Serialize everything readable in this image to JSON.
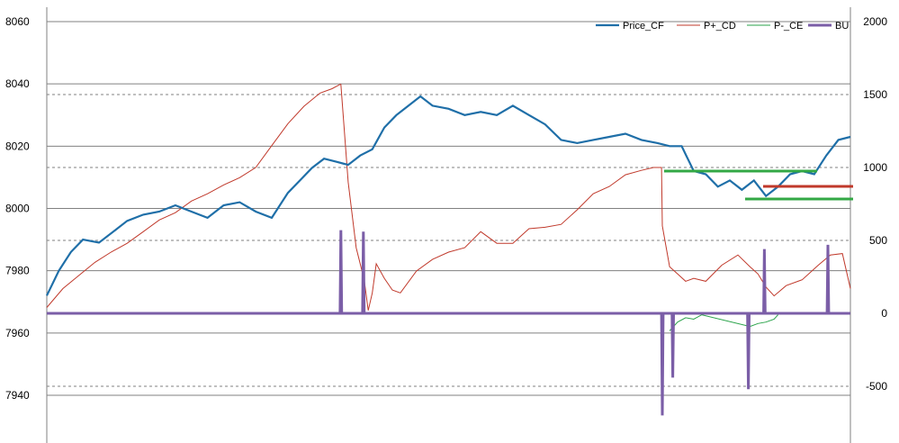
{
  "chart_data": {
    "type": "line",
    "title": "",
    "xlabel": "",
    "ylabel": "",
    "grid": true,
    "legend_position": "top-right",
    "y_left": {
      "ticks": [
        {
          "value": 7940,
          "label": "7940"
        },
        {
          "value": 7960,
          "label": "7960"
        },
        {
          "value": 7980,
          "label": "7980"
        },
        {
          "value": 8000,
          "label": "8000"
        },
        {
          "value": 8020,
          "label": "8020"
        },
        {
          "value": 8040,
          "label": "8040"
        },
        {
          "value": 8060,
          "label": "8060"
        }
      ],
      "range": [
        7934,
        8060
      ]
    },
    "y_right": {
      "ticks": [
        {
          "value": -500,
          "label": "-500"
        },
        {
          "value": 0,
          "label": "0"
        },
        {
          "value": 500,
          "label": "500"
        },
        {
          "value": 1000,
          "label": "1000"
        },
        {
          "value": 1500,
          "label": "1500"
        },
        {
          "value": 2000,
          "label": "2000"
        }
      ],
      "range": [
        -880,
        2000
      ]
    },
    "x_range": [
      0,
      100
    ],
    "series": [
      {
        "name": "Price_CF",
        "axis": "left",
        "color": "#1f6fa8",
        "x": [
          0,
          1.5,
          3,
          4.5,
          6.5,
          8.5,
          10,
          12,
          14,
          16,
          18,
          20,
          22,
          24,
          26,
          28,
          30,
          31.5,
          33,
          34.5,
          36,
          37.5,
          39,
          40.5,
          42,
          43.5,
          45,
          46.5,
          48,
          50,
          52,
          54,
          56,
          58,
          60,
          62,
          64,
          66,
          68,
          70,
          72,
          74,
          76,
          77.5,
          79,
          80.5,
          82,
          83.5,
          85,
          86.5,
          88,
          89.5,
          91,
          92.5,
          94,
          95.5,
          97,
          98.5,
          100
        ],
        "y": [
          7972,
          7980,
          7986,
          7990,
          7989,
          7993,
          7996,
          7998,
          7999,
          8001,
          7999,
          7997,
          8001,
          8002,
          7999,
          7997,
          8005,
          8009,
          8013,
          8016,
          8015,
          8014,
          8017,
          8019,
          8026,
          8030,
          8033,
          8036,
          8033,
          8032,
          8030,
          8031,
          8030,
          8033,
          8030,
          8027,
          8022,
          8021,
          8022,
          8023,
          8024,
          8022,
          8021,
          8020,
          8020,
          8012,
          8011,
          8007,
          8009,
          8006,
          8009,
          8004,
          8007,
          8011,
          8012,
          8011,
          8017,
          8022,
          8023
        ]
      },
      {
        "name": "P+_CD",
        "axis": "right",
        "color": "#c0392b",
        "x": [
          0,
          2,
          4,
          6,
          8,
          10,
          12,
          14,
          16,
          18,
          20,
          22,
          24,
          26,
          28,
          30,
          32,
          34,
          35.5,
          36.5,
          36.6,
          37.5,
          38.5,
          39.5,
          40,
          40.5,
          41,
          42,
          43,
          44,
          46,
          48,
          50,
          52,
          54,
          56,
          58,
          60,
          62,
          64,
          66,
          68,
          70,
          72,
          74,
          75.5,
          76.5,
          76.6,
          77.5,
          78.5,
          79.5,
          80.5,
          82,
          84,
          86,
          87.5,
          88.5,
          89.5,
          90.5,
          92,
          94,
          96,
          97.5,
          99,
          100
        ],
        "y": [
          40,
          170,
          260,
          350,
          420,
          480,
          560,
          640,
          690,
          770,
          820,
          880,
          930,
          1000,
          1150,
          1300,
          1420,
          1510,
          1540,
          1570,
          1570,
          900,
          450,
          230,
          20,
          140,
          340,
          240,
          160,
          140,
          290,
          370,
          420,
          450,
          560,
          480,
          480,
          580,
          590,
          610,
          710,
          820,
          870,
          950,
          980,
          1000,
          1000,
          600,
          320,
          270,
          220,
          240,
          220,
          330,
          400,
          320,
          270,
          180,
          120,
          190,
          230,
          330,
          400,
          410,
          170
        ]
      },
      {
        "name": "P-_CE",
        "axis": "right",
        "color": "#2aa34a",
        "x": [
          77.5,
          78.5,
          79.5,
          80.5,
          81.5,
          87.5,
          88.5,
          89.5,
          90.5,
          91
        ],
        "y": [
          -120,
          -60,
          -30,
          -40,
          -10,
          -90,
          -70,
          -60,
          -40,
          -10
        ]
      },
      {
        "name": "BU",
        "axis": "right",
        "color": "#7b5ea7",
        "x": [
          0,
          36.5,
          36.6,
          36.7,
          39.3,
          39.4,
          39.5,
          76.5,
          76.6,
          76.7,
          77.8,
          77.9,
          78,
          87.2,
          87.3,
          87.4,
          89.2,
          89.3,
          89.4,
          97.1,
          97.2,
          97.3,
          100
        ],
        "y": [
          0,
          0,
          570,
          0,
          0,
          560,
          0,
          0,
          -700,
          0,
          0,
          -440,
          0,
          0,
          -520,
          0,
          0,
          440,
          0,
          0,
          470,
          0,
          0
        ]
      }
    ]
  }
}
